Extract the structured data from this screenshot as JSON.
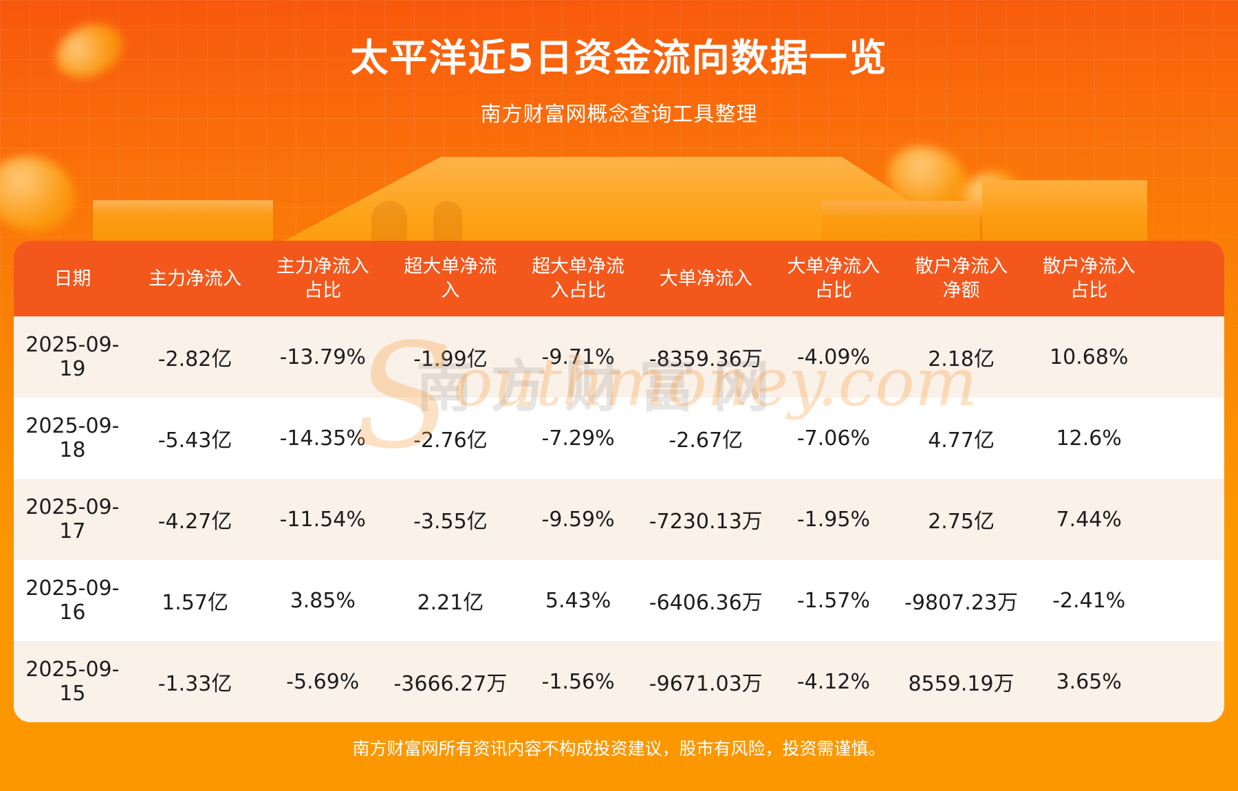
{
  "header": {
    "title": "太平洋近5日资金流向数据一览",
    "subtitle": "南方财富网概念查询工具整理"
  },
  "footer": {
    "disclaimer": "南方财富网所有资讯内容不构成投资建议，股市有风险，投资需谨慎。"
  },
  "watermark": {
    "cn": "南方财富网",
    "en_initial": "S",
    "en_rest": "outhmoney.com"
  },
  "colors": {
    "header_band": "#F4571C",
    "row_cream": "#FAF1E9",
    "row_white": "#FFFFFF",
    "bg_top": "#F8570D",
    "bg_bottom": "#FC9700",
    "title_text": "#FFFFFF",
    "cell_text": "#1C1C1C"
  },
  "table": {
    "headers": [
      "日期",
      "主力净流入",
      "主力净流入\n占比",
      "超大单净流\n入",
      "超大单净流\n入占比",
      "大单净流入",
      "大单净流入\n占比",
      "散户净流入\n净额",
      "散户净流入\n占比"
    ],
    "rows": [
      [
        "2025-09-19",
        "-2.82亿",
        "-13.79%",
        "-1.99亿",
        "-9.71%",
        "-8359.36万",
        "-4.09%",
        "2.18亿",
        "10.68%"
      ],
      [
        "2025-09-18",
        "-5.43亿",
        "-14.35%",
        "-2.76亿",
        "-7.29%",
        "-2.67亿",
        "-7.06%",
        "4.77亿",
        "12.6%"
      ],
      [
        "2025-09-17",
        "-4.27亿",
        "-11.54%",
        "-3.55亿",
        "-9.59%",
        "-7230.13万",
        "-1.95%",
        "2.75亿",
        "7.44%"
      ],
      [
        "2025-09-16",
        "1.57亿",
        "3.85%",
        "2.21亿",
        "5.43%",
        "-6406.36万",
        "-1.57%",
        "-9807.23万",
        "-2.41%"
      ],
      [
        "2025-09-15",
        "-1.33亿",
        "-5.69%",
        "-3666.27万",
        "-1.56%",
        "-9671.03万",
        "-4.12%",
        "8559.19万",
        "3.65%"
      ]
    ]
  },
  "chart_data": {
    "type": "table",
    "title": "太平洋近5日资金流向数据一览",
    "subtitle": "南方财富网概念查询工具整理",
    "columns": [
      "日期",
      "主力净流入",
      "主力净流入占比",
      "超大单净流入",
      "超大单净流入占比",
      "大单净流入",
      "大单净流入占比",
      "散户净流入净额",
      "散户净流入占比"
    ],
    "rows": [
      [
        "2025-09-19",
        "-2.82亿",
        "-13.79%",
        "-1.99亿",
        "-9.71%",
        "-8359.36万",
        "-4.09%",
        "2.18亿",
        "10.68%"
      ],
      [
        "2025-09-18",
        "-5.43亿",
        "-14.35%",
        "-2.76亿",
        "-7.29%",
        "-2.67亿",
        "-7.06%",
        "4.77亿",
        "12.6%"
      ],
      [
        "2025-09-17",
        "-4.27亿",
        "-11.54%",
        "-3.55亿",
        "-9.59%",
        "-7230.13万",
        "-1.95%",
        "2.75亿",
        "7.44%"
      ],
      [
        "2025-09-16",
        "1.57亿",
        "3.85%",
        "2.21亿",
        "5.43%",
        "-6406.36万",
        "-1.57%",
        "-9807.23万",
        "-2.41%"
      ],
      [
        "2025-09-15",
        "-1.33亿",
        "-5.69%",
        "-3666.27万",
        "-1.56%",
        "-9671.03万",
        "-4.12%",
        "8559.19万",
        "3.65%"
      ]
    ]
  }
}
